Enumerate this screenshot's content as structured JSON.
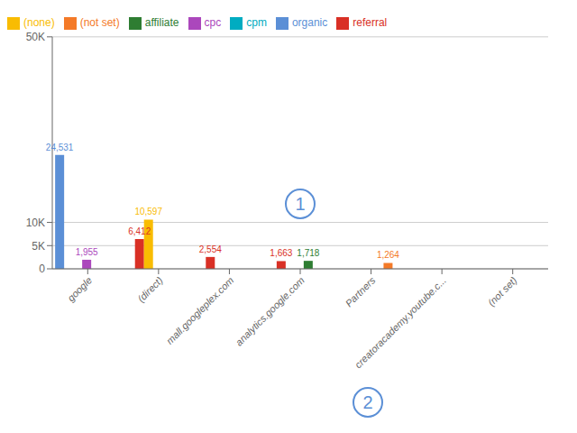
{
  "chart_data": {
    "type": "bar",
    "categories": [
      "google",
      "(direct)",
      "mall.googleplex.com",
      "analytics.google.com",
      "Partners",
      "creatoracademy.youtube.c...",
      "(not set)"
    ],
    "series": [
      {
        "name": "organic",
        "color": "#5b8fd6",
        "values": [
          24531,
          null,
          null,
          null,
          null,
          null,
          null
        ],
        "value_labels": [
          "24,531",
          null,
          null,
          null,
          null,
          null,
          null
        ]
      },
      {
        "name": "referral",
        "color": "#d93025",
        "values": [
          null,
          6412,
          2554,
          1663,
          null,
          null,
          null
        ],
        "value_labels": [
          null,
          "6,412",
          "2,554",
          "1,663",
          null,
          null,
          null
        ]
      },
      {
        "name": "(none)",
        "color": "#f9bc02",
        "values": [
          null,
          10597,
          null,
          null,
          null,
          null,
          null
        ],
        "value_labels": [
          null,
          "10,597",
          null,
          null,
          null,
          null,
          null
        ]
      },
      {
        "name": "cpc",
        "color": "#ab47bc",
        "values": [
          1955,
          null,
          null,
          null,
          null,
          null,
          null
        ],
        "value_labels": [
          "1,955",
          null,
          null,
          null,
          null,
          null,
          null
        ]
      },
      {
        "name": "affiliate",
        "color": "#2e7d32",
        "values": [
          null,
          null,
          null,
          1718,
          null,
          null,
          null
        ],
        "value_labels": [
          null,
          null,
          null,
          "1,718",
          null,
          null,
          null
        ]
      },
      {
        "name": "(not set)",
        "color": "#f47a28",
        "values": [
          null,
          null,
          null,
          null,
          1264,
          null,
          null
        ],
        "value_labels": [
          null,
          null,
          null,
          null,
          "1,264",
          null,
          null
        ]
      },
      {
        "name": "cpm",
        "color": "#00acc1",
        "values": [
          null,
          null,
          null,
          null,
          null,
          null,
          null
        ],
        "value_labels": [
          null,
          null,
          null,
          null,
          null,
          null,
          null
        ]
      }
    ],
    "ylim": [
      0,
      50000
    ],
    "yticks": [
      0,
      {
        "value": 5000,
        "label": "5K"
      },
      {
        "value": 10000,
        "label": "10K"
      },
      {
        "value": 50000,
        "label": "50K"
      }
    ],
    "grid": true,
    "legend": "upper left",
    "data_labels": true,
    "annotations": [
      {
        "text": "1",
        "color": "#5b8fd6",
        "x": "analytics.google.com",
        "y": 14000
      },
      {
        "text": "2",
        "color": "#5b8fd6"
      }
    ]
  }
}
